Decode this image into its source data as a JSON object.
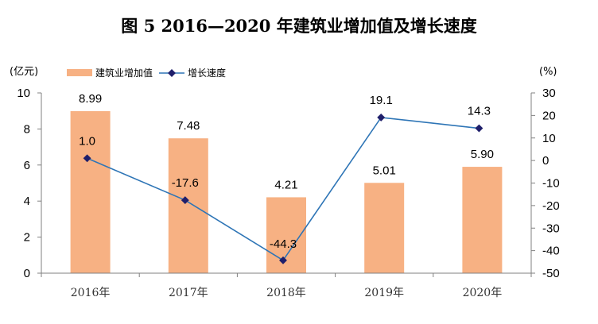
{
  "title": "图 5    2016—2020 年建筑业增加值及增长速度",
  "chart_data": {
    "type": "bar+line",
    "title": "图 5    2016—2020 年建筑业增加值及增长速度",
    "categories": [
      "2016年",
      "2017年",
      "2018年",
      "2019年",
      "2020年"
    ],
    "left_axis": {
      "unit": "(亿元)",
      "range": [
        0,
        10
      ],
      "ticks": [
        0,
        2,
        4,
        6,
        8,
        10
      ]
    },
    "right_axis": {
      "unit": "(%)",
      "range": [
        -50,
        30
      ],
      "ticks": [
        30,
        20,
        10,
        0,
        -10,
        -20,
        -30,
        -40,
        -50
      ]
    },
    "series": [
      {
        "name": "建筑业增加值",
        "type": "bar",
        "axis": "left",
        "color": "#F7B183",
        "values": [
          8.99,
          7.48,
          4.21,
          5.01,
          5.9
        ],
        "labels": [
          "8.99",
          "7.48",
          "4.21",
          "5.01",
          "5.90"
        ]
      },
      {
        "name": "增长速度",
        "type": "line",
        "axis": "right",
        "color": "#2E75B6",
        "marker_color": "#1F1F6B",
        "values": [
          1.0,
          -17.6,
          -44.3,
          19.1,
          14.3
        ],
        "labels": [
          "1.0",
          "-17.6",
          "-44.3",
          "19.1",
          "14.3"
        ]
      }
    ],
    "legend_position": "top-left",
    "grid": false
  }
}
